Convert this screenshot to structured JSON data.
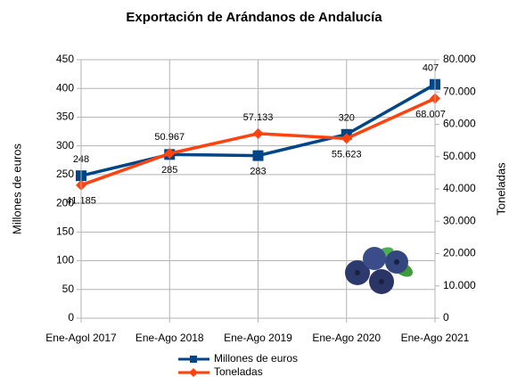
{
  "chart_data": {
    "type": "line",
    "title": "Exportación de Arándanos de Andalucía",
    "categories": [
      "Ene-Agol 2017",
      "Ene-Ago 2018",
      "Ene-Ago 2019",
      "Ene-Ago 2020",
      "Ene-Ago 2021"
    ],
    "y_label": "Millones de euros",
    "y2_label": "Toneladas",
    "ylim": [
      0,
      450
    ],
    "yticks": [
      0,
      50,
      100,
      150,
      200,
      250,
      300,
      350,
      400,
      450
    ],
    "y2lim": [
      0,
      80000
    ],
    "y2ticks": [
      0,
      {
        "value": 10000,
        "label": "10.000"
      },
      {
        "value": 20000,
        "label": "20.000"
      },
      {
        "value": 30000,
        "label": "30.000"
      },
      {
        "value": 40000,
        "label": "40.000"
      },
      {
        "value": 50000,
        "label": "50.000"
      },
      {
        "value": 60000,
        "label": "60.000"
      },
      {
        "value": 70000,
        "label": "70.000"
      },
      {
        "value": 80000,
        "label": "80.000"
      }
    ],
    "grid": true,
    "series": [
      {
        "name": "Millones de euros",
        "color": "#004586",
        "marker": "square",
        "values": [
          248,
          285,
          283,
          320,
          407
        ]
      },
      {
        "name": "Toneladas",
        "color": "#ff420e",
        "marker": "diamond",
        "axis": "y2",
        "values": [
          41185,
          50967,
          57133,
          55623,
          68007
        ],
        "value_labels": [
          "41.185",
          "50.967",
          "57.133",
          "55.623",
          "68.007"
        ]
      }
    ]
  }
}
